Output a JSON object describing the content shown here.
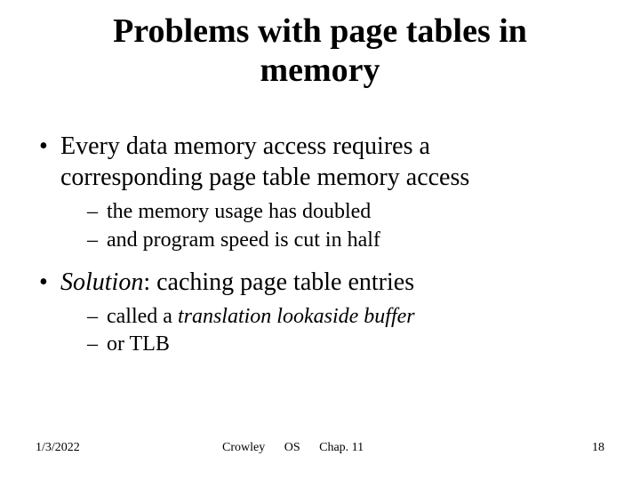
{
  "title_line1": "Problems with page tables in",
  "title_line2": "memory",
  "bullet1_line1": "Every data memory access requires a",
  "bullet1_line2": "corresponding page table memory access",
  "sub1_1": "the memory usage has doubled",
  "sub1_2": "and program speed is cut in half",
  "bullet2_prefix": "Solution",
  "bullet2_rest": ": caching page table entries",
  "sub2_1_prefix": "called a ",
  "sub2_1_italic": "translation lookaside buffer",
  "sub2_2": "or TLB",
  "footer_date": "1/3/2022",
  "footer_author": "Crowley",
  "footer_course": "OS",
  "footer_chapter": "Chap. 11",
  "footer_page": "18",
  "colors": {
    "text": "#000000",
    "background": "#ffffff"
  },
  "fonts": {
    "family": "Times New Roman",
    "title_size_pt": 38,
    "body_size_pt": 28,
    "sub_size_pt": 24,
    "footer_size_pt": 14
  }
}
